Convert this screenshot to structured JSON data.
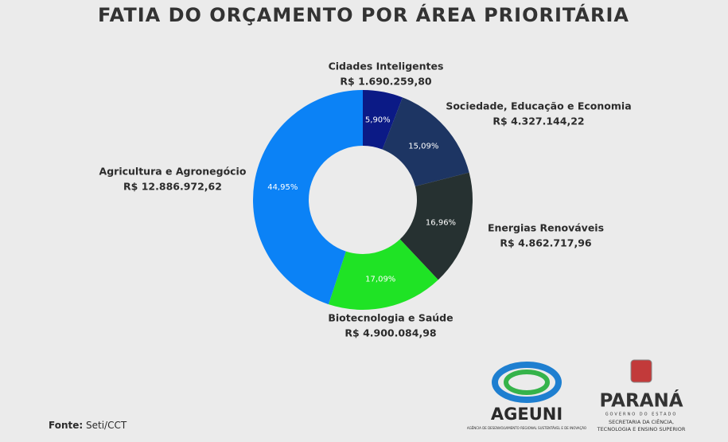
{
  "chart_data": {
    "type": "donut",
    "title": "FATIA DO ORÇAMENTO POR ÁREA PRIORITÁRIA",
    "categories": [
      "Cidades Inteligentes",
      "Sociedade, Educação e Economia",
      "Energias Renováveis",
      "Biotecnologia e Saúde",
      "Agricultura e Agronegócio"
    ],
    "values": [
      5.9,
      15.09,
      16.96,
      17.09,
      44.95
    ],
    "value_labels": [
      "5,90%",
      "15,09%",
      "16,96%",
      "17,09%",
      "44,95%"
    ],
    "amounts": [
      {
        "value": 1690259.8,
        "label": "R$ 1.690.259,80"
      },
      {
        "value": 4327144.22,
        "label": "R$ 4.327.144,22"
      },
      {
        "value": 4862717.96,
        "label": "R$ 4.862.717,96"
      },
      {
        "value": 4900084.98,
        "label": "R$ 4.900.084,98"
      },
      {
        "value": 12886972.62,
        "label": "R$ 12.886.972,62"
      }
    ],
    "colors": [
      "#0b1a86",
      "#1d3563",
      "#263131",
      "#1fe325",
      "#0b82f6"
    ],
    "source_label": "Fonte:",
    "source": "Seti/CCT"
  },
  "logos": {
    "ageuni": "AGEUNI",
    "ageuni_sub": "AGÊNCIA DE DESENVOLVIMENTO REGIONAL SUSTENTÁVEL E DE INOVAÇÃO",
    "parana": "PARANÁ",
    "parana_sub": "GOVERNO DO ESTADO",
    "seti_1": "SECRETARIA DA CIÊNCIA,",
    "seti_2": "TECNOLOGIA E ENSINO SUPERIOR"
  }
}
